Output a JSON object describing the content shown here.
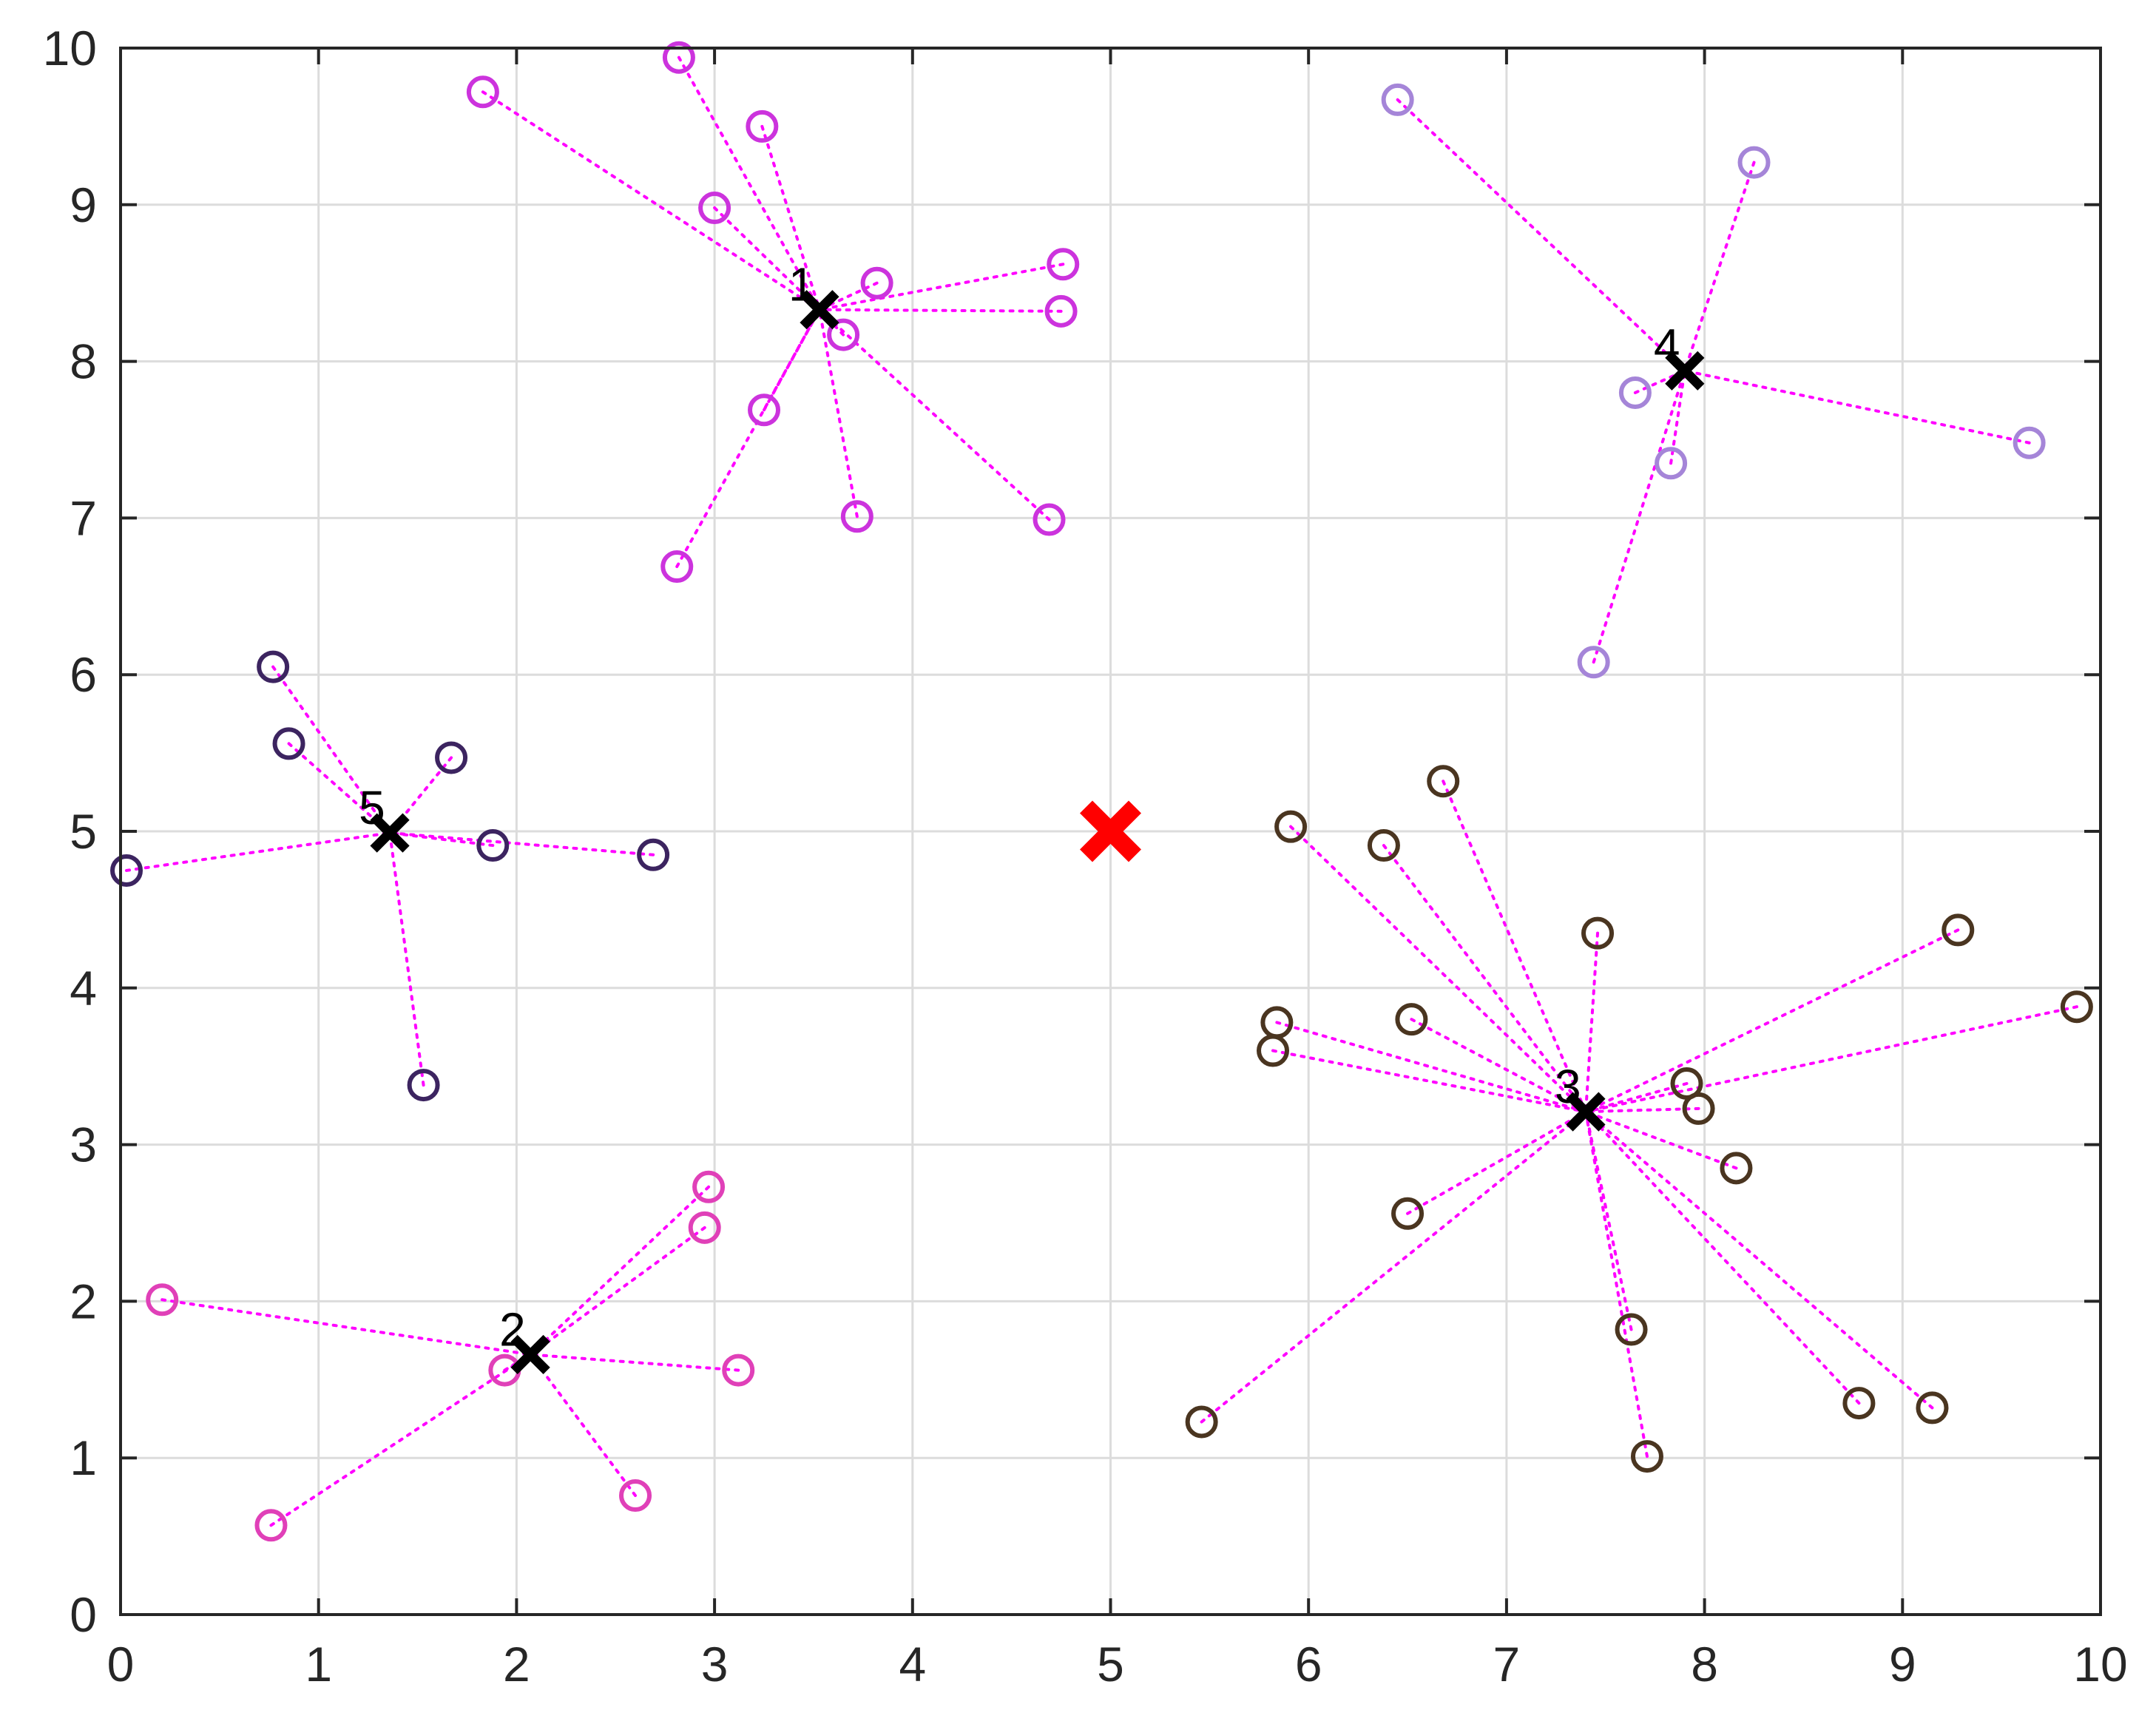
{
  "chart_data": {
    "type": "scatter",
    "title": "",
    "xlabel": "",
    "ylabel": "",
    "xlim": [
      0,
      10
    ],
    "ylim": [
      0,
      10
    ],
    "x_ticks": [
      "0",
      "1",
      "2",
      "3",
      "4",
      "5",
      "6",
      "7",
      "8",
      "9",
      "10"
    ],
    "y_ticks": [
      "0",
      "1",
      "2",
      "3",
      "4",
      "5",
      "6",
      "7",
      "8",
      "9",
      "10"
    ],
    "grid": true,
    "link_color": "#ff00ff",
    "center_marker": {
      "x": 5.0,
      "y": 5.0,
      "color": "#ff0000"
    },
    "clusters": [
      {
        "label": "1",
        "color": "#cc33dd",
        "head": {
          "x": 3.53,
          "y": 8.33
        },
        "points": [
          [
            1.83,
            9.72
          ],
          [
            2.82,
            9.94
          ],
          [
            3.24,
            9.5
          ],
          [
            3.0,
            8.98
          ],
          [
            3.82,
            8.5
          ],
          [
            4.76,
            8.62
          ],
          [
            4.75,
            8.32
          ],
          [
            3.65,
            8.17
          ],
          [
            3.25,
            7.69
          ],
          [
            2.81,
            6.69
          ],
          [
            3.72,
            7.01
          ],
          [
            4.69,
            6.99
          ]
        ]
      },
      {
        "label": "2",
        "color": "#e040b8",
        "head": {
          "x": 2.07,
          "y": 1.66
        },
        "points": [
          [
            0.21,
            2.01
          ],
          [
            1.94,
            1.56
          ],
          [
            0.76,
            0.57
          ],
          [
            2.97,
            2.73
          ],
          [
            2.95,
            2.47
          ],
          [
            3.12,
            1.56
          ],
          [
            2.6,
            0.76
          ]
        ]
      },
      {
        "label": "3",
        "color": "#4a3520",
        "head": {
          "x": 7.4,
          "y": 3.21
        },
        "points": [
          [
            5.91,
            5.03
          ],
          [
            6.38,
            4.91
          ],
          [
            6.68,
            5.32
          ],
          [
            7.46,
            4.35
          ],
          [
            5.84,
            3.78
          ],
          [
            6.52,
            3.8
          ],
          [
            5.82,
            3.6
          ],
          [
            7.91,
            3.39
          ],
          [
            7.97,
            3.23
          ],
          [
            8.16,
            2.85
          ],
          [
            9.28,
            4.37
          ],
          [
            9.88,
            3.88
          ],
          [
            6.5,
            2.56
          ],
          [
            5.46,
            1.23
          ],
          [
            7.63,
            1.82
          ],
          [
            7.71,
            1.01
          ],
          [
            8.78,
            1.35
          ],
          [
            9.15,
            1.32
          ]
        ]
      },
      {
        "label": "4",
        "color": "#a585d8",
        "head": {
          "x": 7.9,
          "y": 7.94
        },
        "points": [
          [
            6.45,
            9.67
          ],
          [
            8.25,
            9.27
          ],
          [
            7.65,
            7.8
          ],
          [
            7.83,
            7.35
          ],
          [
            9.64,
            7.48
          ],
          [
            7.44,
            6.08
          ]
        ]
      },
      {
        "label": "5",
        "color": "#3c2460",
        "head": {
          "x": 1.36,
          "y": 4.99
        },
        "points": [
          [
            0.77,
            6.05
          ],
          [
            0.85,
            5.56
          ],
          [
            1.67,
            5.47
          ],
          [
            1.88,
            4.91
          ],
          [
            2.69,
            4.85
          ],
          [
            0.03,
            4.75
          ],
          [
            1.53,
            3.38
          ]
        ]
      }
    ]
  }
}
